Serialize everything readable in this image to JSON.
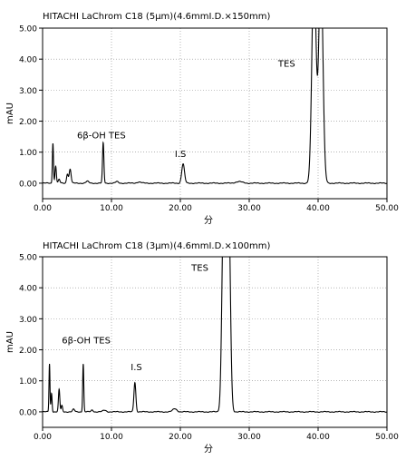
{
  "chart_data": [
    {
      "type": "line",
      "title": "HITACHI LaChrom C18 (5μm)(4.6mmI.D.×150mm)",
      "xlabel": "分",
      "ylabel": "mAU",
      "xlim": [
        0,
        50
      ],
      "ylim": [
        -0.5,
        5
      ],
      "x_ticks": [
        "0.00",
        "10.00",
        "20.00",
        "30.00",
        "40.00",
        "50.00"
      ],
      "y_ticks": [
        "0.00",
        "1.00",
        "2.00",
        "3.00",
        "4.00",
        "5.00"
      ],
      "baseline": 0,
      "peaks": [
        {
          "rt": 1.5,
          "height": 1.3,
          "width": 0.08
        },
        {
          "rt": 1.9,
          "height": 0.55,
          "width": 0.1
        },
        {
          "rt": 2.4,
          "height": 0.12,
          "width": 0.12
        },
        {
          "rt": 3.6,
          "height": 0.3,
          "width": 0.12
        },
        {
          "rt": 4.0,
          "height": 0.45,
          "width": 0.14
        },
        {
          "rt": 6.5,
          "height": 0.06,
          "width": 0.2
        },
        {
          "rt": 8.8,
          "height": 1.3,
          "width": 0.1
        },
        {
          "rt": 10.8,
          "height": 0.05,
          "width": 0.2
        },
        {
          "rt": 14.0,
          "height": 0.04,
          "width": 0.3
        },
        {
          "rt": 20.4,
          "height": 0.62,
          "width": 0.2
        },
        {
          "rt": 28.5,
          "height": 0.05,
          "width": 0.5
        },
        {
          "rt": 39.4,
          "height": 7.0,
          "width": 0.3
        },
        {
          "rt": 40.4,
          "height": 7.0,
          "width": 0.3
        }
      ],
      "annotations": [
        {
          "text": "6β-OH TES",
          "x": 5.0,
          "y": 1.45
        },
        {
          "text": "I.S",
          "x": 19.2,
          "y": 0.85
        },
        {
          "text": "TES",
          "x": 34.2,
          "y": 3.75
        }
      ]
    },
    {
      "type": "line",
      "title": "HITACHI LaChrom C18 (3μm)(4.6mmI.D.×100mm)",
      "xlabel": "分",
      "ylabel": "mAU",
      "xlim": [
        0,
        50
      ],
      "ylim": [
        -0.5,
        5
      ],
      "x_ticks": [
        "0.00",
        "10.00",
        "20.00",
        "30.00",
        "40.00",
        "50.00"
      ],
      "y_ticks": [
        "0.00",
        "1.00",
        "2.00",
        "3.00",
        "4.00",
        "5.00"
      ],
      "baseline": 0,
      "peaks": [
        {
          "rt": 1.0,
          "height": 1.55,
          "width": 0.07
        },
        {
          "rt": 1.3,
          "height": 0.6,
          "width": 0.08
        },
        {
          "rt": 2.4,
          "height": 0.72,
          "width": 0.1
        },
        {
          "rt": 2.8,
          "height": 0.2,
          "width": 0.1
        },
        {
          "rt": 4.5,
          "height": 0.08,
          "width": 0.15
        },
        {
          "rt": 5.9,
          "height": 1.55,
          "width": 0.08
        },
        {
          "rt": 7.2,
          "height": 0.06,
          "width": 0.15
        },
        {
          "rt": 9.0,
          "height": 0.05,
          "width": 0.25
        },
        {
          "rt": 13.4,
          "height": 0.95,
          "width": 0.14
        },
        {
          "rt": 19.2,
          "height": 0.1,
          "width": 0.3
        },
        {
          "rt": 26.3,
          "height": 7.0,
          "width": 0.25
        },
        {
          "rt": 27.0,
          "height": 7.0,
          "width": 0.25
        }
      ],
      "annotations": [
        {
          "text": "6β-OH TES",
          "x": 2.8,
          "y": 2.2
        },
        {
          "text": "I.S",
          "x": 12.8,
          "y": 1.35
        },
        {
          "text": "TES",
          "x": 21.6,
          "y": 4.55
        }
      ]
    }
  ]
}
